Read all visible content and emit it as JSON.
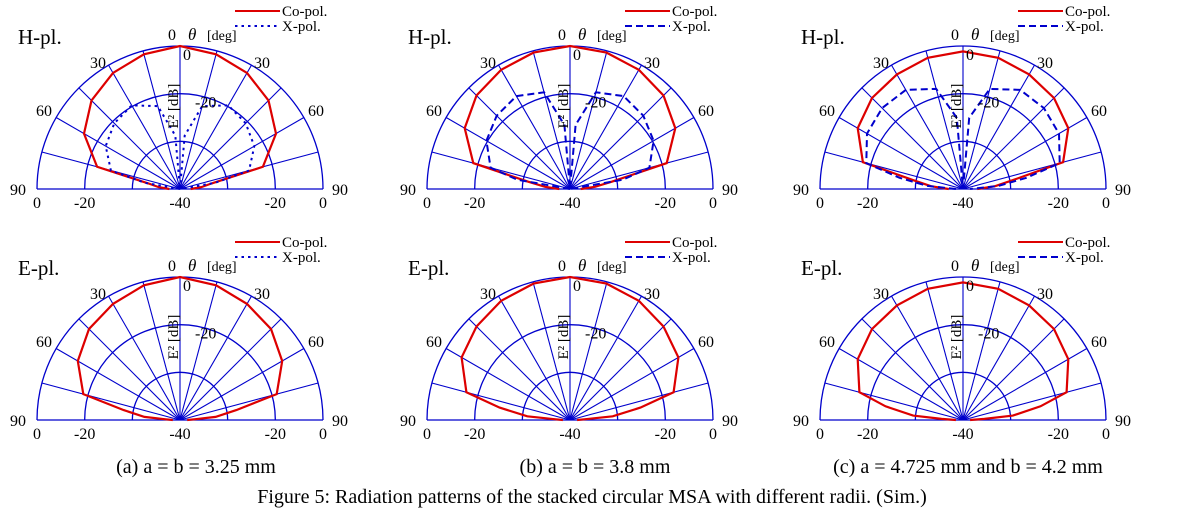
{
  "figure": {
    "caption": "Figure 5: Radiation patterns of the stacked circular MSA with different radii. (Sim.)",
    "subcaptions": [
      {
        "label": "(a)",
        "param": "a = b = 3.25 mm"
      },
      {
        "label": "(b)",
        "param": "a = b = 3.8 mm"
      },
      {
        "label": "(c)",
        "param": "a = 4.725 mm and b = 4.2 mm"
      }
    ]
  },
  "colors": {
    "grid": "#0000cc",
    "co_pol": "#dd0000",
    "x_pol": "#0000cc"
  },
  "chart_data": [
    {
      "type": "polar-half",
      "panel": "a",
      "plane": "H-pl.",
      "title": "H-pl.",
      "angle_label": "θ",
      "angle_unit": "[deg]",
      "radial_label": "E² [dB]",
      "theta_ticks": [
        0,
        30,
        60,
        90
      ],
      "r_ticks": [
        "0",
        "-20",
        "-40",
        "-20",
        "0"
      ],
      "inner_labels": [
        "0",
        "-20"
      ],
      "rlim": [
        -40,
        0
      ],
      "x_style": "dotted",
      "series": [
        {
          "name": "Co-pol.",
          "theta": [
            -90,
            -85,
            -80,
            -75,
            -60,
            -45,
            -30,
            -15,
            0,
            15,
            30,
            45,
            60,
            75,
            80,
            85,
            90
          ],
          "values": [
            -37,
            -34,
            -31,
            -16,
            -9,
            -5,
            -2.5,
            -1,
            0,
            -1,
            -2.5,
            -5,
            -9,
            -16,
            -31,
            -34,
            -37
          ]
        },
        {
          "name": "X-pol.",
          "theta": [
            -90,
            -80,
            -75,
            -60,
            -45,
            -30,
            -15,
            -5,
            0,
            5,
            15,
            30,
            45,
            60,
            75,
            80,
            90
          ],
          "values": [
            -40,
            -30,
            -20,
            -16,
            -14,
            -13,
            -16,
            -25,
            -40,
            -25,
            -16,
            -13,
            -14,
            -16,
            -20,
            -30,
            -40
          ]
        }
      ]
    },
    {
      "type": "polar-half",
      "panel": "b",
      "plane": "H-pl.",
      "title": "H-pl.",
      "angle_label": "θ",
      "angle_unit": "[deg]",
      "radial_label": "E² [dB]",
      "theta_ticks": [
        0,
        30,
        60,
        90
      ],
      "r_ticks": [
        "0",
        "-20",
        "-40",
        "-20",
        "0"
      ],
      "inner_labels": [
        "0",
        "-20"
      ],
      "rlim": [
        -40,
        0
      ],
      "x_style": "dashed",
      "series": [
        {
          "name": "Co-pol.",
          "theta": [
            -90,
            -85,
            -80,
            -75,
            -60,
            -45,
            -30,
            -15,
            0,
            15,
            30,
            45,
            60,
            75,
            80,
            85,
            90
          ],
          "values": [
            -37,
            -33,
            -28,
            -12,
            -6,
            -3,
            -1.5,
            -0.5,
            0,
            -0.5,
            -1.5,
            -3,
            -6,
            -12,
            -28,
            -33,
            -37
          ]
        },
        {
          "name": "X-pol.",
          "theta": [
            -90,
            -80,
            -75,
            -60,
            -45,
            -30,
            -15,
            -5,
            0,
            5,
            15,
            30,
            45,
            60,
            75,
            80,
            90
          ],
          "values": [
            -40,
            -25,
            -17,
            -13,
            -11,
            -10,
            -12,
            -22,
            -40,
            -22,
            -12,
            -10,
            -11,
            -13,
            -17,
            -25,
            -40
          ]
        }
      ]
    },
    {
      "type": "polar-half",
      "panel": "c",
      "plane": "H-pl.",
      "title": "H-pl.",
      "angle_label": "θ",
      "angle_unit": "[deg]",
      "radial_label": "E² [dB]",
      "theta_ticks": [
        0,
        30,
        60,
        90
      ],
      "r_ticks": [
        "0",
        "-20",
        "-40",
        "-20",
        "0"
      ],
      "inner_labels": [
        "0",
        "-20"
      ],
      "rlim": [
        -40,
        0
      ],
      "x_style": "dashed",
      "series": [
        {
          "name": "Co-pol.",
          "theta": [
            -90,
            -85,
            -80,
            -75,
            -60,
            -45,
            -30,
            -15,
            0,
            15,
            30,
            45,
            60,
            75,
            80,
            85,
            90
          ],
          "values": [
            -36,
            -31,
            -26,
            -11,
            -6,
            -4,
            -3,
            -2,
            -1.5,
            -2,
            -3,
            -4,
            -6,
            -11,
            -26,
            -31,
            -36
          ]
        },
        {
          "name": "X-pol.",
          "theta": [
            -90,
            -85,
            -80,
            -75,
            -60,
            -45,
            -30,
            -15,
            -5,
            0,
            5,
            15,
            30,
            45,
            60,
            75,
            80,
            85,
            90
          ],
          "values": [
            -38,
            -30,
            -22,
            -12,
            -9,
            -8,
            -8,
            -11,
            -20,
            -40,
            -20,
            -11,
            -8,
            -8,
            -9,
            -12,
            -22,
            -30,
            -38
          ]
        }
      ]
    },
    {
      "type": "polar-half",
      "panel": "a",
      "plane": "E-pl.",
      "title": "E-pl.",
      "angle_label": "θ",
      "angle_unit": "[deg]",
      "radial_label": "E² [dB]",
      "theta_ticks": [
        0,
        30,
        60,
        90
      ],
      "r_ticks": [
        "0",
        "-20",
        "-40",
        "-20",
        "0"
      ],
      "inner_labels": [
        "0",
        "-20"
      ],
      "rlim": [
        -40,
        0
      ],
      "x_style": "dotted",
      "series": [
        {
          "name": "Co-pol.",
          "theta": [
            -90,
            -87,
            -85,
            -80,
            -75,
            -60,
            -45,
            -30,
            -15,
            0,
            15,
            30,
            45,
            60,
            75,
            80,
            85,
            87,
            90
          ],
          "values": [
            -38,
            -36,
            -30,
            -24,
            -12,
            -7,
            -4,
            -2.5,
            -1,
            0,
            -1,
            -2.5,
            -4,
            -7,
            -12,
            -24,
            -30,
            -36,
            -38
          ]
        }
      ]
    },
    {
      "type": "polar-half",
      "panel": "b",
      "plane": "E-pl.",
      "title": "E-pl.",
      "angle_label": "θ",
      "angle_unit": "[deg]",
      "radial_label": "E² [dB]",
      "theta_ticks": [
        0,
        30,
        60,
        90
      ],
      "r_ticks": [
        "0",
        "-20",
        "-40",
        "-20",
        "0"
      ],
      "inner_labels": [
        "0",
        "-20"
      ],
      "rlim": [
        -40,
        0
      ],
      "x_style": "dashed",
      "series": [
        {
          "name": "Co-pol.",
          "theta": [
            -90,
            -87,
            -85,
            -80,
            -75,
            -60,
            -45,
            -30,
            -15,
            0,
            15,
            30,
            45,
            60,
            75,
            80,
            85,
            87,
            90
          ],
          "values": [
            -38,
            -36,
            -28,
            -20,
            -10,
            -5,
            -3,
            -1.5,
            -0.5,
            0,
            -0.5,
            -1.5,
            -3,
            -5,
            -10,
            -20,
            -28,
            -36,
            -38
          ]
        }
      ]
    },
    {
      "type": "polar-half",
      "panel": "c",
      "plane": "E-pl.",
      "title": "E-pl.",
      "angle_label": "θ",
      "angle_unit": "[deg]",
      "radial_label": "E² [dB]",
      "theta_ticks": [
        0,
        30,
        60,
        90
      ],
      "r_ticks": [
        "0",
        "-20",
        "-40",
        "-20",
        "0"
      ],
      "inner_labels": [
        "0",
        "-20"
      ],
      "rlim": [
        -40,
        0
      ],
      "x_style": "dashed",
      "series": [
        {
          "name": "Co-pol.",
          "theta": [
            -90,
            -87,
            -85,
            -80,
            -75,
            -60,
            -45,
            -30,
            -15,
            0,
            15,
            30,
            45,
            60,
            75,
            80,
            85,
            87,
            90
          ],
          "values": [
            -38,
            -34,
            -26,
            -18,
            -10,
            -6,
            -4,
            -3,
            -2,
            -1.5,
            -2,
            -3,
            -4,
            -6,
            -10,
            -18,
            -26,
            -34,
            -38
          ]
        }
      ]
    }
  ]
}
